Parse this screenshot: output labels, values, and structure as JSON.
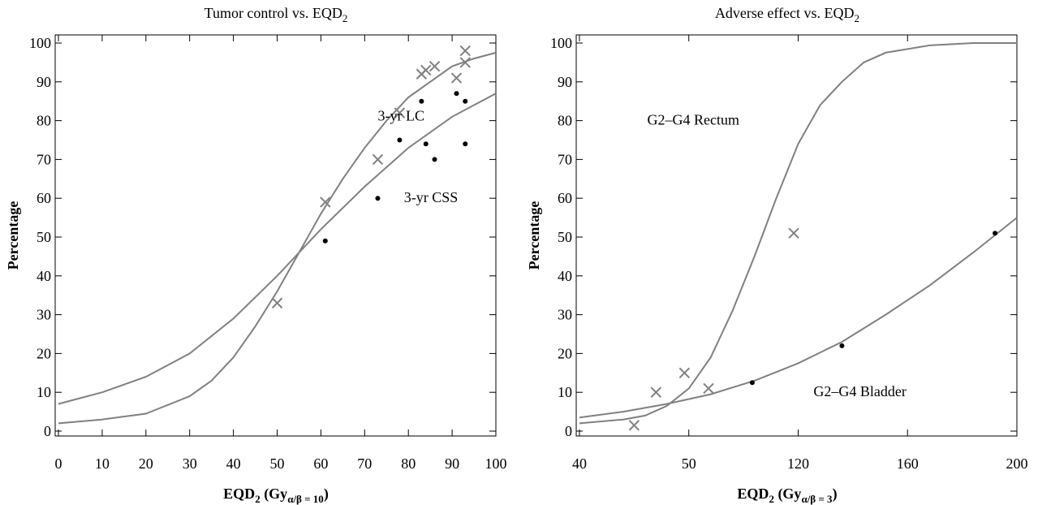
{
  "chart_data": [
    {
      "type": "scatter",
      "title": "Tumor control vs. EQD",
      "title_sub": "2",
      "xlabel": "EQD",
      "xlabel_sub": "2",
      "xlabel_unit_pre": " (Gy",
      "xlabel_unit_sub": "α/β = 10",
      "xlabel_unit_post": ")",
      "ylabel": "Percentage",
      "xlim": [
        0,
        100
      ],
      "ylim": [
        0,
        100
      ],
      "x_ticks": [
        0,
        10,
        20,
        30,
        40,
        50,
        60,
        70,
        80,
        90,
        100
      ],
      "y_ticks": [
        0,
        10,
        20,
        30,
        40,
        50,
        60,
        70,
        80,
        90,
        100
      ],
      "series": [
        {
          "name": "3-yr LC",
          "marker": "x",
          "points": [
            [
              50,
              33
            ],
            [
              61,
              59
            ],
            [
              73,
              70
            ],
            [
              78,
              82
            ],
            [
              83,
              92
            ],
            [
              84,
              93
            ],
            [
              86,
              94
            ],
            [
              91,
              91
            ],
            [
              93,
              95
            ],
            [
              93,
              98
            ]
          ],
          "fit": [
            [
              0,
              2
            ],
            [
              10,
              3
            ],
            [
              20,
              4.5
            ],
            [
              30,
              9
            ],
            [
              35,
              13
            ],
            [
              40,
              19
            ],
            [
              45,
              27
            ],
            [
              50,
              36
            ],
            [
              55,
              46
            ],
            [
              60,
              56
            ],
            [
              65,
              65
            ],
            [
              70,
              73
            ],
            [
              75,
              80
            ],
            [
              80,
              86
            ],
            [
              85,
              90
            ],
            [
              90,
              94
            ],
            [
              95,
              96
            ],
            [
              100,
              97.5
            ]
          ],
          "color": "#808080"
        },
        {
          "name": "3-yr CSS",
          "marker": "dot",
          "points": [
            [
              61,
              49
            ],
            [
              73,
              60
            ],
            [
              78,
              75
            ],
            [
              83,
              85
            ],
            [
              84,
              74
            ],
            [
              86,
              70
            ],
            [
              91,
              87
            ],
            [
              93,
              85
            ],
            [
              93,
              74
            ]
          ],
          "fit": [
            [
              0,
              7
            ],
            [
              10,
              10
            ],
            [
              20,
              14
            ],
            [
              30,
              20
            ],
            [
              40,
              29
            ],
            [
              50,
              40
            ],
            [
              60,
              52
            ],
            [
              70,
              63
            ],
            [
              80,
              73
            ],
            [
              90,
              81
            ],
            [
              100,
              87
            ]
          ],
          "color": "#000000"
        }
      ],
      "annotations": [
        {
          "text": "3-yr LC",
          "x": 73,
          "y": 80
        },
        {
          "text": "3-yr CSS",
          "x": 79,
          "y": 59
        }
      ]
    },
    {
      "type": "scatter",
      "title": "Adverse effect vs. EQD",
      "title_sub": "2",
      "xlabel": "EQD",
      "xlabel_sub": "2",
      "xlabel_unit_pre": " (Gy",
      "xlabel_unit_sub": "α/β = 3",
      "xlabel_unit_post": ")",
      "ylabel": "Percentage",
      "x_tick_labels": [
        "40",
        "50",
        "120",
        "160",
        "200"
      ],
      "y_ticks": [
        0,
        10,
        20,
        30,
        40,
        50,
        60,
        70,
        80,
        90,
        100
      ],
      "ylim": [
        0,
        100
      ],
      "series": [
        {
          "name": "G2–G4 Rectum",
          "marker": "x",
          "points": [
            [
              0.125,
              1.5
            ],
            [
              0.175,
              10
            ],
            [
              0.24,
              15
            ],
            [
              0.295,
              11
            ],
            [
              0.49,
              51
            ]
          ],
          "fit": [
            [
              0,
              2
            ],
            [
              0.1,
              3
            ],
            [
              0.15,
              4
            ],
            [
              0.2,
              6.5
            ],
            [
              0.25,
              11
            ],
            [
              0.3,
              19
            ],
            [
              0.35,
              31
            ],
            [
              0.4,
              45
            ],
            [
              0.45,
              60
            ],
            [
              0.5,
              74
            ],
            [
              0.55,
              84
            ],
            [
              0.6,
              90
            ],
            [
              0.65,
              95
            ],
            [
              0.7,
              97.5
            ],
            [
              0.8,
              99.4
            ],
            [
              0.9,
              100
            ],
            [
              1.0,
              100
            ]
          ],
          "color": "#808080"
        },
        {
          "name": "G2–G4 Bladder",
          "marker": "dot",
          "points": [
            [
              0.395,
              12.5
            ],
            [
              0.6,
              22
            ],
            [
              0.95,
              51
            ]
          ],
          "fit": [
            [
              0,
              3.5
            ],
            [
              0.1,
              5
            ],
            [
              0.2,
              7
            ],
            [
              0.3,
              9.5
            ],
            [
              0.4,
              13
            ],
            [
              0.5,
              17.5
            ],
            [
              0.6,
              23
            ],
            [
              0.7,
              30
            ],
            [
              0.8,
              37.5
            ],
            [
              0.9,
              46
            ],
            [
              1.0,
              55
            ]
          ],
          "color": "#000000"
        }
      ],
      "annotations": [
        {
          "text": "G2–G4 Rectum",
          "x": 0.155,
          "y": 79
        },
        {
          "text": "G2–G4 Bladder",
          "x": 0.535,
          "y": 9
        }
      ]
    }
  ]
}
